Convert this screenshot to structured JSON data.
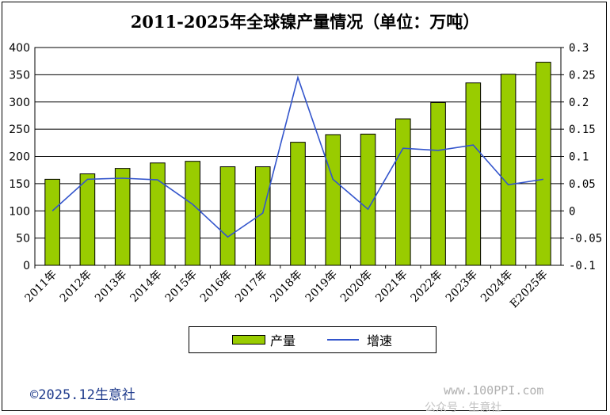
{
  "chart_data": {
    "type": "bar",
    "title": "2011-2025年全球镍产量情况（单位：万吨）",
    "categories": [
      "2011年",
      "2012年",
      "2013年",
      "2014年",
      "2015年",
      "2016年",
      "2017年",
      "2018年",
      "2019年",
      "2020年",
      "2021年",
      "2022年",
      "2023年",
      "2024年",
      "E2025年"
    ],
    "series": [
      {
        "name": "产量",
        "type": "bar",
        "axis": "left",
        "color": "#99cc00",
        "values": [
          158,
          168,
          178,
          188,
          191,
          181,
          181,
          226,
          240,
          241,
          269,
          299,
          335,
          351,
          373
        ]
      },
      {
        "name": "增速",
        "type": "line",
        "axis": "right",
        "color": "#3355cc",
        "values": [
          0.0,
          0.058,
          0.06,
          0.057,
          0.012,
          -0.048,
          -0.004,
          0.245,
          0.058,
          0.003,
          0.115,
          0.111,
          0.121,
          0.048,
          0.058
        ]
      }
    ],
    "y_left": {
      "min": 0,
      "max": 400,
      "ticks": [
        "0",
        "50",
        "100",
        "150",
        "200",
        "250",
        "300",
        "350",
        "400"
      ]
    },
    "y_right": {
      "min": -0.1,
      "max": 0.3,
      "ticks": [
        "-0.1",
        "-0.05",
        "0",
        "0.05",
        "0.1",
        "0.15",
        "0.2",
        "0.25",
        "0.3"
      ]
    },
    "grid": "horizontal",
    "legend": "bottom"
  },
  "footer": {
    "copyright": "©2025.12生意社",
    "watermark": "www.100PPI.com",
    "watermark_line2": "公众号 · 生意社"
  }
}
